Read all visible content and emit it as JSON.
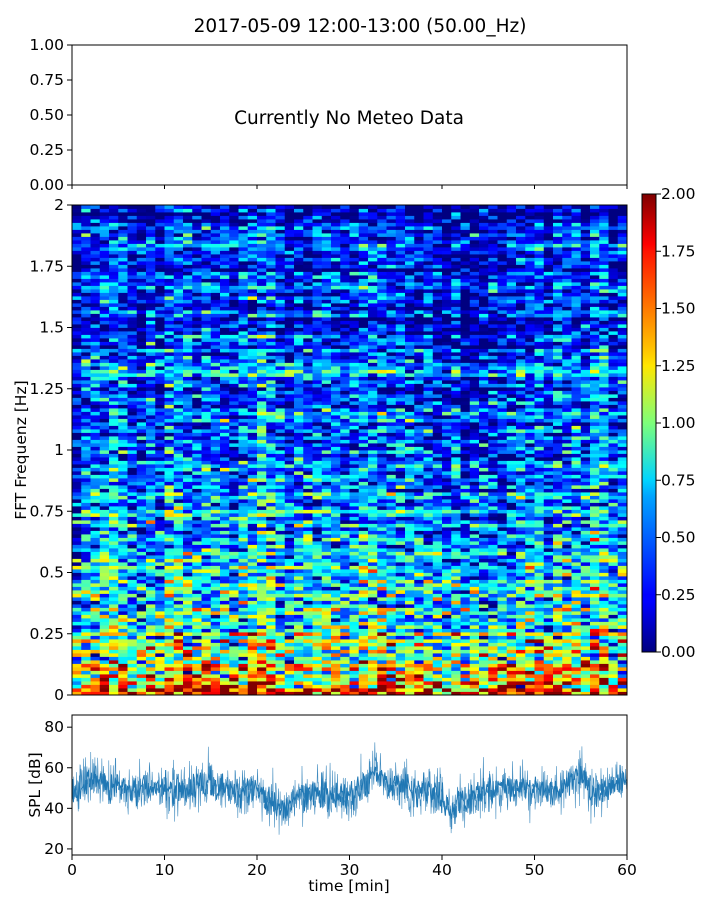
{
  "title": "2017-05-09 12:00-13:00 (50.00_Hz)",
  "chart_data": [
    {
      "panel": "meteo",
      "type": "line",
      "annotation": "Currently No Meteo Data",
      "ylim": [
        0,
        1
      ],
      "yticks": [
        "0.00",
        "0.25",
        "0.50",
        "0.75",
        "1.00"
      ],
      "xlim": [
        0,
        60
      ],
      "series": []
    },
    {
      "panel": "spectrogram",
      "type": "heatmap",
      "ylabel": "FFT Frequenz [Hz]",
      "xlim": [
        0,
        60
      ],
      "ylim": [
        0,
        2
      ],
      "yticks": [
        "0",
        "0.25",
        "0.5",
        "0.75",
        "1",
        "1.25",
        "1.5",
        "1.75",
        "2"
      ],
      "colorscale": "jet",
      "color_range": [
        0,
        2
      ],
      "colorbar_ticks": [
        "0.00",
        "0.25",
        "0.50",
        "0.75",
        "1.00",
        "1.25",
        "1.50",
        "1.75",
        "2.00"
      ],
      "mean_intensity_profile": {
        "freq_hz": [
          0.0,
          0.05,
          0.1,
          0.2,
          0.3,
          0.4,
          0.5,
          0.75,
          1.0,
          1.25,
          1.5,
          1.75,
          2.0
        ],
        "value": [
          1.7,
          1.45,
          1.2,
          1.0,
          0.85,
          0.72,
          0.65,
          0.55,
          0.45,
          0.38,
          0.34,
          0.3,
          0.28
        ]
      }
    },
    {
      "panel": "spl",
      "type": "line",
      "xlabel": "time [min]",
      "ylabel": "SPL [dB]",
      "xlim": [
        0,
        60
      ],
      "ylim": [
        17,
        86
      ],
      "xticks": [
        "0",
        "10",
        "20",
        "30",
        "40",
        "50",
        "60"
      ],
      "yticks": [
        "20",
        "40",
        "60",
        "80"
      ],
      "color": "#1f77b4",
      "series": [
        {
          "x": [
            0,
            2,
            4,
            6,
            8,
            10,
            12,
            14,
            16,
            18,
            20,
            22,
            23,
            24,
            26,
            28,
            30,
            32,
            33,
            34,
            36,
            38,
            40,
            41,
            42,
            44,
            46,
            48,
            50,
            52,
            54,
            55,
            56,
            58,
            60
          ],
          "y": [
            48,
            55,
            52,
            48,
            50,
            49,
            47,
            52,
            50,
            48,
            49,
            42,
            38,
            46,
            48,
            47,
            46,
            52,
            58,
            52,
            50,
            48,
            47,
            38,
            43,
            47,
            49,
            50,
            49,
            48,
            54,
            58,
            48,
            50,
            55
          ]
        }
      ]
    }
  ]
}
